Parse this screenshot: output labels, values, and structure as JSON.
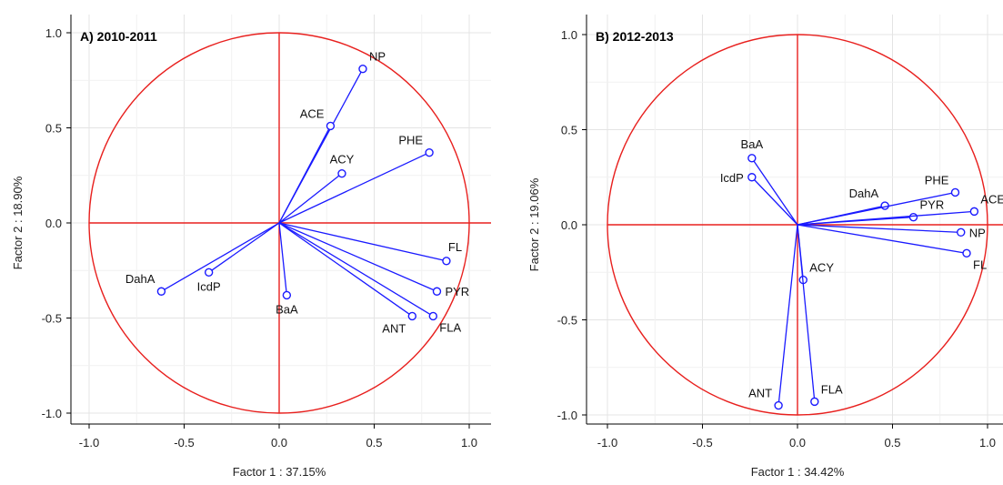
{
  "chart_data": [
    {
      "type": "scatter",
      "title": "A) 2010-2011",
      "xlabel": "Factor 1 : 37.15%",
      "ylabel": "Factor 2 : 18.90%",
      "xlim": [
        -1.1,
        1.1
      ],
      "ylim": [
        -1.1,
        1.05
      ],
      "xticks": [
        "-1.0",
        "-0.5",
        "0.0",
        "0.5",
        "1.0"
      ],
      "yticks": [
        "1.0",
        "0.5",
        "0.0",
        "-0.5",
        "-1.0"
      ],
      "grid": true,
      "unit_circle": true,
      "colors": {
        "vectors": "#1a1aff",
        "circle": "#e8201e",
        "grid": "#e4e4e4"
      },
      "points": [
        {
          "label": "NP",
          "x": 0.44,
          "y": 0.81,
          "label_pos": "ne"
        },
        {
          "label": "ACE",
          "x": 0.27,
          "y": 0.51,
          "label_pos": "nw"
        },
        {
          "label": "ACY",
          "x": 0.33,
          "y": 0.26,
          "label_pos": "n"
        },
        {
          "label": "PHE",
          "x": 0.79,
          "y": 0.37,
          "label_pos": "nw"
        },
        {
          "label": "FL",
          "x": 0.88,
          "y": -0.2,
          "label_pos": "nne"
        },
        {
          "label": "PYR",
          "x": 0.83,
          "y": -0.36,
          "label_pos": "e"
        },
        {
          "label": "FLA",
          "x": 0.81,
          "y": -0.49,
          "label_pos": "se"
        },
        {
          "label": "ANT",
          "x": 0.7,
          "y": -0.49,
          "label_pos": "sw"
        },
        {
          "label": "BaA",
          "x": 0.04,
          "y": -0.38,
          "label_pos": "s"
        },
        {
          "label": "IcdP",
          "x": -0.37,
          "y": -0.26,
          "label_pos": "s"
        },
        {
          "label": "DahA",
          "x": -0.62,
          "y": -0.36,
          "label_pos": "nw"
        }
      ]
    },
    {
      "type": "scatter",
      "title": "B) 2012-2013",
      "xlabel": "Factor 1 : 34.42%",
      "ylabel": "Factor 2 : 19.06%",
      "xlim": [
        -1.1,
        1.1
      ],
      "ylim": [
        -1.1,
        1.05
      ],
      "xticks": [
        "-1.0",
        "-0.5",
        "0.0",
        "0.5",
        "1.0"
      ],
      "yticks": [
        "1.0",
        "0.5",
        "0.0",
        "-0.5",
        "-1.0"
      ],
      "grid": true,
      "unit_circle": true,
      "colors": {
        "vectors": "#1a1aff",
        "circle": "#e8201e",
        "grid": "#e4e4e4"
      },
      "points": [
        {
          "label": "BaA",
          "x": -0.24,
          "y": 0.35,
          "label_pos": "n"
        },
        {
          "label": "IcdP",
          "x": -0.24,
          "y": 0.25,
          "label_pos": "w"
        },
        {
          "label": "DahA",
          "x": 0.46,
          "y": 0.1,
          "label_pos": "nw"
        },
        {
          "label": "PHE",
          "x": 0.83,
          "y": 0.17,
          "label_pos": "nw"
        },
        {
          "label": "PYR",
          "x": 0.61,
          "y": 0.04,
          "label_pos": "ne"
        },
        {
          "label": "ACE",
          "x": 0.93,
          "y": 0.07,
          "label_pos": "ne"
        },
        {
          "label": "NP",
          "x": 0.86,
          "y": -0.04,
          "label_pos": "e"
        },
        {
          "label": "FL",
          "x": 0.89,
          "y": -0.15,
          "label_pos": "se"
        },
        {
          "label": "ACY",
          "x": 0.03,
          "y": -0.29,
          "label_pos": "ne"
        },
        {
          "label": "FLA",
          "x": 0.09,
          "y": -0.93,
          "label_pos": "ne"
        },
        {
          "label": "ANT",
          "x": -0.1,
          "y": -0.95,
          "label_pos": "nw"
        }
      ]
    }
  ]
}
